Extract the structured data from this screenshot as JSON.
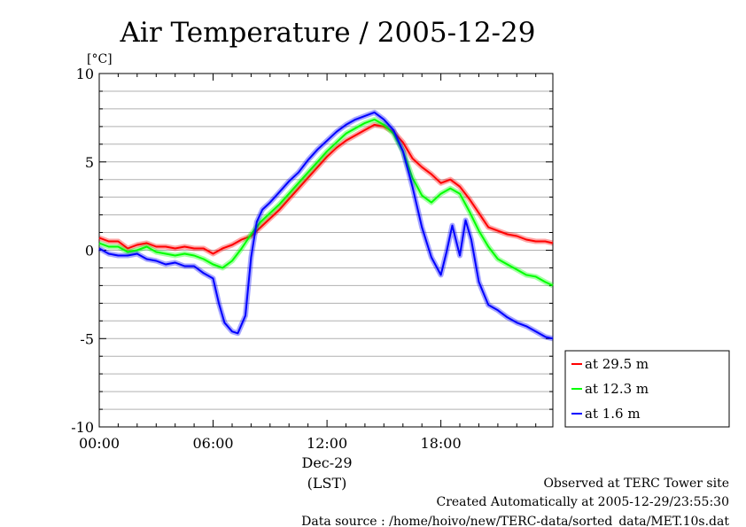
{
  "chart_data": {
    "type": "line",
    "title": "Air Temperature / 2005-12-29",
    "ylabel": "[°C]",
    "xlabel": "(LST)",
    "x_unit": "hours (LST)",
    "xlim": [
      0,
      23.9
    ],
    "ylim": [
      -10,
      10
    ],
    "yticks": [
      10,
      5,
      0,
      -5,
      -10
    ],
    "ytick_labels": [
      "10",
      "5",
      "0",
      "-5",
      "-10"
    ],
    "xticks": [
      {
        "value": 0,
        "label": "00:00"
      },
      {
        "value": 6,
        "label": "06:00"
      },
      {
        "value": 12,
        "label": "12:00"
      },
      {
        "value": 18,
        "label": "18:00"
      }
    ],
    "date_label": "Dec-29",
    "grid": true,
    "legend_position": "outside-bottom-right",
    "series": [
      {
        "name": "at 29.5 m",
        "color": "#ff0000",
        "x": [
          0,
          0.5,
          1,
          1.5,
          2,
          2.5,
          3,
          3.5,
          4,
          4.5,
          5,
          5.5,
          6,
          6.5,
          7,
          7.5,
          8,
          8.5,
          9,
          9.5,
          10,
          10.5,
          11,
          11.5,
          12,
          12.5,
          13,
          13.5,
          14,
          14.5,
          15,
          15.5,
          16,
          16.5,
          17,
          17.5,
          18,
          18.5,
          19,
          19.5,
          20,
          20.5,
          21,
          21.5,
          22,
          22.5,
          23,
          23.5,
          23.9
        ],
        "values": [
          0.7,
          0.5,
          0.5,
          0.1,
          0.3,
          0.4,
          0.2,
          0.2,
          0.1,
          0.2,
          0.1,
          0.1,
          -0.2,
          0.1,
          0.3,
          0.6,
          0.8,
          1.3,
          1.8,
          2.3,
          2.9,
          3.5,
          4.1,
          4.7,
          5.3,
          5.8,
          6.2,
          6.5,
          6.8,
          7.1,
          7.0,
          6.7,
          6.1,
          5.2,
          4.7,
          4.3,
          3.8,
          4.0,
          3.6,
          2.9,
          2.1,
          1.3,
          1.1,
          0.9,
          0.8,
          0.6,
          0.5,
          0.5,
          0.4
        ]
      },
      {
        "name": "at 12.3 m",
        "color": "#00ff00",
        "x": [
          0,
          0.5,
          1,
          1.5,
          2,
          2.5,
          3,
          3.5,
          4,
          4.5,
          5,
          5.5,
          6,
          6.5,
          7,
          7.5,
          8,
          8.5,
          9,
          9.5,
          10,
          10.5,
          11,
          11.5,
          12,
          12.5,
          13,
          13.5,
          14,
          14.5,
          15,
          15.5,
          16,
          16.5,
          17,
          17.5,
          18,
          18.5,
          19,
          19.5,
          20,
          20.5,
          21,
          21.5,
          22,
          22.5,
          23,
          23.5,
          23.9
        ],
        "values": [
          0.4,
          0.2,
          0.2,
          -0.1,
          0.0,
          0.2,
          -0.1,
          -0.2,
          -0.3,
          -0.2,
          -0.3,
          -0.5,
          -0.8,
          -1.0,
          -0.6,
          0.1,
          0.9,
          1.6,
          2.1,
          2.6,
          3.2,
          3.8,
          4.4,
          5.0,
          5.6,
          6.1,
          6.6,
          6.9,
          7.2,
          7.4,
          7.1,
          6.6,
          5.6,
          4.1,
          3.1,
          2.7,
          3.2,
          3.5,
          3.2,
          2.2,
          1.1,
          0.2,
          -0.5,
          -0.8,
          -1.1,
          -1.4,
          -1.5,
          -1.8,
          -2.0
        ]
      },
      {
        "name": "at 1.6 m",
        "color": "#0000ff",
        "x": [
          0,
          0.5,
          1,
          1.5,
          2,
          2.5,
          3,
          3.5,
          4,
          4.5,
          5,
          5.5,
          6,
          6.3,
          6.6,
          7,
          7.3,
          7.7,
          8,
          8.3,
          8.6,
          9,
          9.5,
          10,
          10.5,
          11,
          11.5,
          12,
          12.5,
          13,
          13.5,
          14,
          14.5,
          15,
          15.5,
          16,
          16.5,
          17,
          17.5,
          18,
          18.3,
          18.6,
          19,
          19.3,
          19.6,
          20,
          20.5,
          21,
          21.5,
          22,
          22.5,
          23,
          23.5,
          23.9
        ],
        "values": [
          0.1,
          -0.2,
          -0.3,
          -0.3,
          -0.2,
          -0.5,
          -0.6,
          -0.8,
          -0.7,
          -0.9,
          -0.9,
          -1.3,
          -1.6,
          -3.0,
          -4.1,
          -4.6,
          -4.7,
          -3.7,
          -0.4,
          1.6,
          2.3,
          2.7,
          3.3,
          3.9,
          4.4,
          5.1,
          5.7,
          6.2,
          6.7,
          7.1,
          7.4,
          7.6,
          7.8,
          7.4,
          6.8,
          5.6,
          3.6,
          1.3,
          -0.4,
          -1.4,
          -0.1,
          1.4,
          -0.3,
          1.7,
          0.6,
          -1.8,
          -3.1,
          -3.4,
          -3.8,
          -4.1,
          -4.3,
          -4.6,
          -4.9,
          -5.0
        ]
      }
    ]
  },
  "footer": {
    "observed": "Observed at TERC Tower site",
    "created": "Created Automatically at 2005-12-29/23:55:30",
    "source": "Data source : /home/hoivo/new/TERC-data/sorted_data/MET.10s.dat"
  }
}
